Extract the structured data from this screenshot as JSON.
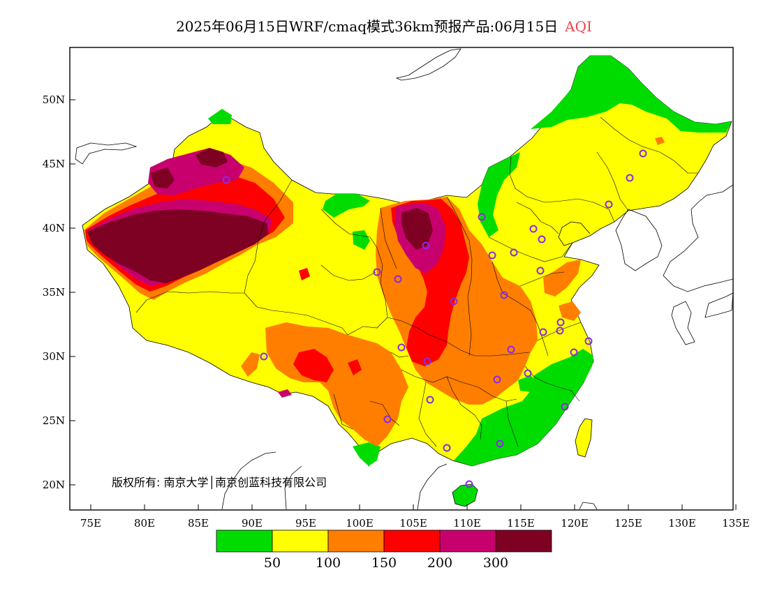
{
  "title": {
    "main": "2025年06月15日WRF/cmaq模式36km预报产品:06月15日",
    "variable": "AQI",
    "variable_color": "#e8454a"
  },
  "axes": {
    "lat_ticks": [
      "50N",
      "45N",
      "40N",
      "35N",
      "30N",
      "25N",
      "20N"
    ],
    "lon_ticks": [
      "75E",
      "80E",
      "85E",
      "90E",
      "95E",
      "100E",
      "105E",
      "110E",
      "115E",
      "120E",
      "125E",
      "130E",
      "135E"
    ]
  },
  "credit": "版权所有: 南京大学│南京创蓝科技有限公司",
  "colorbar": {
    "colors": [
      "#00dc00",
      "#ffff00",
      "#ff7e00",
      "#ff0000",
      "#c8006e",
      "#7e0023"
    ],
    "labels": [
      "50",
      "100",
      "150",
      "200",
      "300"
    ]
  },
  "map_colors": {
    "ocean": "#ffffff",
    "good": "#00dc00",
    "moderate": "#ffff00",
    "usg": "#ff7e00",
    "unhealthy": "#ff0000",
    "very_unhealthy": "#c8006e",
    "hazardous": "#7e0023",
    "station_marker": "#8a2be2"
  }
}
